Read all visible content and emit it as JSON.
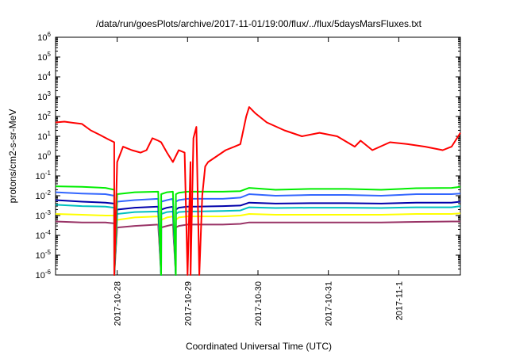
{
  "chart_data": {
    "type": "line",
    "title": "/data/run/goesPlots/archive/2017-11-01/19:00/flux/../flux/5daysMarsFluxes.txt",
    "xlabel": "Coordinated Universal Time (UTC)",
    "ylabel": "protons/cm2-s-sr-MeV",
    "x_scale": "time",
    "y_scale": "log",
    "xlim": [
      "2017-10-27T03:00",
      "2017-11-01T21:00"
    ],
    "ylim": [
      1e-06,
      1000000.0
    ],
    "x_ticks": [
      {
        "x": "2017-10-28T00:00",
        "label": "2017-10-28"
      },
      {
        "x": "2017-10-29T00:00",
        "label": "2017-10-29"
      },
      {
        "x": "2017-10-30T00:00",
        "label": "2017-10-30"
      },
      {
        "x": "2017-10-31T00:00",
        "label": "2017-10-31"
      },
      {
        "x": "2017-11-01T00:00",
        "label": "2017-11-1"
      }
    ],
    "y_ticks": [
      {
        "exp": "-6"
      },
      {
        "exp": "-5"
      },
      {
        "exp": "-4"
      },
      {
        "exp": "-3"
      },
      {
        "exp": "-2"
      },
      {
        "exp": "-1"
      },
      {
        "exp": "0"
      },
      {
        "exp": "1"
      },
      {
        "exp": "2"
      },
      {
        "exp": "3"
      },
      {
        "exp": "4"
      },
      {
        "exp": "5"
      },
      {
        "exp": "6"
      }
    ],
    "grid": false,
    "legend": "none",
    "series": [
      {
        "color": "#ff0000",
        "x": [
          "2017-10-27T03:00",
          "2017-10-27T06:00",
          "2017-10-27T09:00",
          "2017-10-27T12:00",
          "2017-10-27T15:00",
          "2017-10-27T18:00",
          "2017-10-27T21:00",
          "2017-10-27T23:00",
          "2017-10-27T23:01",
          "2017-10-28T00:00",
          "2017-10-28T02:00",
          "2017-10-28T05:00",
          "2017-10-28T08:00",
          "2017-10-28T10:00",
          "2017-10-28T12:00",
          "2017-10-28T14:00",
          "2017-10-28T15:00",
          "2017-10-28T17:00",
          "2017-10-28T19:00",
          "2017-10-28T20:00",
          "2017-10-28T21:00",
          "2017-10-28T23:00",
          "2017-10-29T00:00",
          "2017-10-29T01:00",
          "2017-10-29T01:01",
          "2017-10-29T02:00",
          "2017-10-29T03:00",
          "2017-10-29T04:00",
          "2017-10-29T05:00",
          "2017-10-29T06:00",
          "2017-10-29T07:00",
          "2017-10-29T10:00",
          "2017-10-29T13:00",
          "2017-10-29T16:00",
          "2017-10-29T18:00",
          "2017-10-29T20:00",
          "2017-10-29T21:00",
          "2017-10-29T23:00",
          "2017-10-30T03:00",
          "2017-10-30T09:00",
          "2017-10-30T15:00",
          "2017-10-30T21:00",
          "2017-10-31T03:00",
          "2017-10-31T09:00",
          "2017-10-31T11:00",
          "2017-10-31T15:00",
          "2017-10-31T21:00",
          "2017-11-01T03:00",
          "2017-11-01T09:00",
          "2017-11-01T15:00",
          "2017-11-01T18:00",
          "2017-11-01T21:00"
        ],
        "values": [
          50,
          55,
          48,
          42,
          20,
          12,
          7,
          5,
          1e-06,
          0.5,
          3,
          2,
          1.5,
          2,
          8,
          6,
          5,
          1.5,
          0.5,
          1,
          2,
          1.5,
          1e-06,
          0.5,
          1e-06,
          8,
          30,
          1e-06,
          0.01,
          0.3,
          0.5,
          1,
          2,
          3,
          4,
          100,
          300,
          150,
          50,
          20,
          10,
          15,
          10,
          3,
          6,
          2,
          5,
          4,
          3,
          2,
          3,
          15
        ]
      },
      {
        "color": "#00ee00",
        "x": [
          "2017-10-27T03:00",
          "2017-10-27T12:00",
          "2017-10-27T20:00",
          "2017-10-27T23:00",
          "2017-10-27T23:01",
          "2017-10-28T00:00",
          "2017-10-28T06:00",
          "2017-10-28T14:00",
          "2017-10-28T15:00",
          "2017-10-28T15:01",
          "2017-10-28T17:00",
          "2017-10-28T19:00",
          "2017-10-28T20:00",
          "2017-10-28T20:01",
          "2017-10-28T21:00",
          "2017-10-29T00:00",
          "2017-10-29T03:00",
          "2017-10-29T12:00",
          "2017-10-29T18:00",
          "2017-10-29T21:00",
          "2017-10-30T06:00",
          "2017-10-30T18:00",
          "2017-10-31T06:00",
          "2017-10-31T18:00",
          "2017-11-01T06:00",
          "2017-11-01T18:00",
          "2017-11-01T21:00"
        ],
        "values": [
          0.03,
          0.028,
          0.025,
          0.02,
          1e-06,
          0.012,
          0.015,
          0.016,
          1e-06,
          0.012,
          0.015,
          0.016,
          1e-06,
          0.012,
          0.014,
          0.016,
          0.016,
          0.016,
          0.017,
          0.025,
          0.02,
          0.022,
          0.022,
          0.02,
          0.024,
          0.025,
          0.028
        ]
      },
      {
        "color": "#3366ff",
        "x": [
          "2017-10-27T03:00",
          "2017-10-27T12:00",
          "2017-10-27T20:00",
          "2017-10-27T23:00",
          "2017-10-27T23:01",
          "2017-10-28T00:00",
          "2017-10-28T06:00",
          "2017-10-28T14:00",
          "2017-10-28T15:00",
          "2017-10-28T15:01",
          "2017-10-28T17:00",
          "2017-10-28T19:00",
          "2017-10-28T20:00",
          "2017-10-28T20:01",
          "2017-10-28T21:00",
          "2017-10-29T00:00",
          "2017-10-29T03:00",
          "2017-10-29T12:00",
          "2017-10-29T18:00",
          "2017-10-29T21:00",
          "2017-10-30T06:00",
          "2017-10-30T18:00",
          "2017-10-31T06:00",
          "2017-10-31T18:00",
          "2017-11-01T06:00",
          "2017-11-01T18:00",
          "2017-11-01T21:00"
        ],
        "values": [
          0.015,
          0.013,
          0.012,
          0.01,
          1e-06,
          0.005,
          0.006,
          0.007,
          1e-06,
          0.005,
          0.006,
          0.007,
          1e-06,
          0.005,
          0.006,
          0.007,
          0.007,
          0.007,
          0.008,
          0.012,
          0.01,
          0.011,
          0.011,
          0.01,
          0.012,
          0.012,
          0.013
        ]
      },
      {
        "color": "#0000aa",
        "x": [
          "2017-10-27T03:00",
          "2017-10-27T12:00",
          "2017-10-27T20:00",
          "2017-10-27T23:00",
          "2017-10-27T23:01",
          "2017-10-28T00:00",
          "2017-10-28T06:00",
          "2017-10-28T14:00",
          "2017-10-28T15:00",
          "2017-10-28T15:01",
          "2017-10-28T17:00",
          "2017-10-28T19:00",
          "2017-10-28T20:00",
          "2017-10-28T20:01",
          "2017-10-28T21:00",
          "2017-10-29T00:00",
          "2017-10-29T03:00",
          "2017-10-29T12:00",
          "2017-10-29T18:00",
          "2017-10-29T21:00",
          "2017-10-30T06:00",
          "2017-10-30T18:00",
          "2017-10-31T06:00",
          "2017-10-31T18:00",
          "2017-11-01T06:00",
          "2017-11-01T18:00",
          "2017-11-01T21:00"
        ],
        "values": [
          0.006,
          0.005,
          0.0045,
          0.004,
          1e-06,
          0.002,
          0.0025,
          0.0028,
          1e-06,
          0.002,
          0.0025,
          0.0028,
          1e-06,
          0.002,
          0.0025,
          0.0028,
          0.0028,
          0.003,
          0.0032,
          0.0045,
          0.004,
          0.0042,
          0.0042,
          0.004,
          0.0045,
          0.0045,
          0.005
        ]
      },
      {
        "color": "#00c0c0",
        "x": [
          "2017-10-27T03:00",
          "2017-10-27T12:00",
          "2017-10-27T20:00",
          "2017-10-27T23:00",
          "2017-10-27T23:01",
          "2017-10-28T00:00",
          "2017-10-28T06:00",
          "2017-10-28T14:00",
          "2017-10-28T15:00",
          "2017-10-28T15:01",
          "2017-10-28T17:00",
          "2017-10-28T19:00",
          "2017-10-28T20:00",
          "2017-10-28T20:01",
          "2017-10-28T21:00",
          "2017-10-29T00:00",
          "2017-10-29T03:00",
          "2017-10-29T12:00",
          "2017-10-29T18:00",
          "2017-10-29T21:00",
          "2017-10-30T06:00",
          "2017-10-30T18:00",
          "2017-10-31T06:00",
          "2017-10-31T18:00",
          "2017-11-01T06:00",
          "2017-11-01T18:00",
          "2017-11-01T21:00"
        ],
        "values": [
          0.0035,
          0.003,
          0.0028,
          0.0025,
          1e-06,
          0.0012,
          0.0015,
          0.0016,
          1e-06,
          0.0012,
          0.0015,
          0.0016,
          1e-06,
          0.0012,
          0.0015,
          0.0016,
          0.0016,
          0.0017,
          0.0018,
          0.0026,
          0.0024,
          0.0025,
          0.0025,
          0.0024,
          0.0026,
          0.0026,
          0.003
        ]
      },
      {
        "color": "#ffff00",
        "x": [
          "2017-10-27T03:00",
          "2017-10-27T12:00",
          "2017-10-27T20:00",
          "2017-10-27T23:00",
          "2017-10-27T23:01",
          "2017-10-28T00:00",
          "2017-10-28T06:00",
          "2017-10-28T14:00",
          "2017-10-28T15:00",
          "2017-10-28T15:01",
          "2017-10-28T17:00",
          "2017-10-28T19:00",
          "2017-10-28T20:00",
          "2017-10-28T20:01",
          "2017-10-28T21:00",
          "2017-10-29T00:00",
          "2017-10-29T03:00",
          "2017-10-29T12:00",
          "2017-10-29T18:00",
          "2017-10-29T21:00",
          "2017-10-30T06:00",
          "2017-10-30T18:00",
          "2017-10-31T06:00",
          "2017-10-31T18:00",
          "2017-11-01T06:00",
          "2017-11-01T18:00",
          "2017-11-01T21:00"
        ],
        "values": [
          0.0012,
          0.0011,
          0.001,
          0.001,
          1e-06,
          0.0006,
          0.0008,
          0.0009,
          1e-06,
          0.0006,
          0.0008,
          0.0009,
          1e-06,
          0.0006,
          0.0008,
          0.0009,
          0.0009,
          0.0009,
          0.001,
          0.0012,
          0.0011,
          0.0011,
          0.0011,
          0.0011,
          0.0012,
          0.0012,
          0.0013
        ]
      },
      {
        "color": "#993366",
        "x": [
          "2017-10-27T03:00",
          "2017-10-27T12:00",
          "2017-10-27T20:00",
          "2017-10-27T23:00",
          "2017-10-27T23:01",
          "2017-10-28T00:00",
          "2017-10-28T06:00",
          "2017-10-28T14:00",
          "2017-10-28T15:00",
          "2017-10-28T15:01",
          "2017-10-28T17:00",
          "2017-10-28T19:00",
          "2017-10-28T20:00",
          "2017-10-28T20:01",
          "2017-10-28T21:00",
          "2017-10-29T00:00",
          "2017-10-29T03:00",
          "2017-10-29T12:00",
          "2017-10-29T18:00",
          "2017-10-29T21:00",
          "2017-10-30T06:00",
          "2017-10-30T18:00",
          "2017-10-31T06:00",
          "2017-10-31T18:00",
          "2017-11-01T06:00",
          "2017-11-01T18:00",
          "2017-11-01T21:00"
        ],
        "values": [
          0.0005,
          0.00045,
          0.00045,
          0.0004,
          1e-06,
          0.00025,
          0.0003,
          0.00035,
          1e-06,
          0.00025,
          0.0003,
          0.00035,
          1e-06,
          0.00025,
          0.0003,
          0.00035,
          0.00035,
          0.00035,
          0.00038,
          0.00045,
          0.00045,
          0.00045,
          0.00045,
          0.00045,
          0.00048,
          0.0005,
          0.0005
        ]
      }
    ]
  }
}
